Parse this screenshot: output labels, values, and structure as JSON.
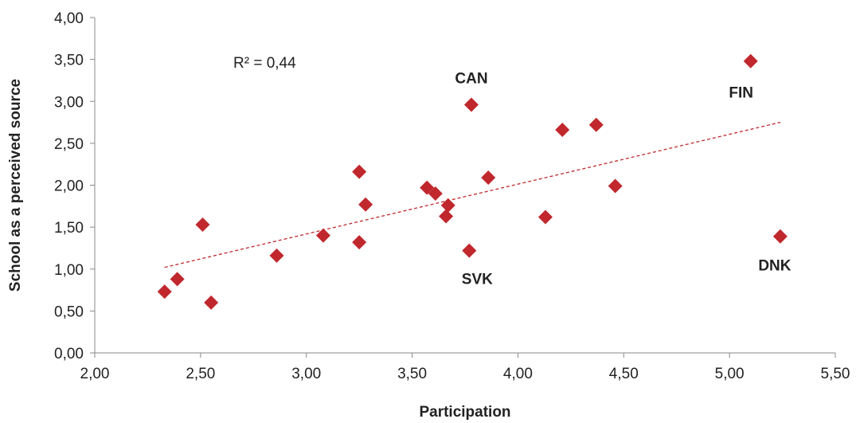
{
  "chart_data": {
    "type": "scatter",
    "xlabel": "Participation",
    "ylabel": "School as a perceived source",
    "xlim": [
      2.0,
      5.5
    ],
    "ylim": [
      0.0,
      4.0
    ],
    "xticks": [
      "2,00",
      "2,50",
      "3,00",
      "3,50",
      "4,00",
      "4,50",
      "5,00",
      "5,50"
    ],
    "yticks": [
      "0,00",
      "0,50",
      "1,00",
      "1,50",
      "2,00",
      "2,50",
      "3,00",
      "3,50",
      "4,00"
    ],
    "grid": false,
    "marker_color": "#c0282d",
    "trendline": {
      "style": "dotted",
      "color": "#c0282d",
      "x": [
        2.33,
        5.24
      ],
      "y": [
        1.02,
        2.75
      ]
    },
    "annotation": "R² = 0,44",
    "points": [
      {
        "x": 2.33,
        "y": 0.73,
        "label": ""
      },
      {
        "x": 2.39,
        "y": 0.88,
        "label": ""
      },
      {
        "x": 2.51,
        "y": 1.53,
        "label": ""
      },
      {
        "x": 2.55,
        "y": 0.6,
        "label": ""
      },
      {
        "x": 2.86,
        "y": 1.16,
        "label": ""
      },
      {
        "x": 3.08,
        "y": 1.4,
        "label": ""
      },
      {
        "x": 3.25,
        "y": 2.16,
        "label": ""
      },
      {
        "x": 3.25,
        "y": 1.32,
        "label": ""
      },
      {
        "x": 3.28,
        "y": 1.77,
        "label": ""
      },
      {
        "x": 3.57,
        "y": 1.97,
        "label": ""
      },
      {
        "x": 3.61,
        "y": 1.9,
        "label": ""
      },
      {
        "x": 3.66,
        "y": 1.63,
        "label": ""
      },
      {
        "x": 3.67,
        "y": 1.76,
        "label": ""
      },
      {
        "x": 3.77,
        "y": 1.22,
        "label": "SVK"
      },
      {
        "x": 3.78,
        "y": 2.96,
        "label": "CAN"
      },
      {
        "x": 3.86,
        "y": 2.09,
        "label": ""
      },
      {
        "x": 4.13,
        "y": 1.62,
        "label": ""
      },
      {
        "x": 4.21,
        "y": 2.66,
        "label": ""
      },
      {
        "x": 4.37,
        "y": 2.72,
        "label": ""
      },
      {
        "x": 4.46,
        "y": 1.99,
        "label": ""
      },
      {
        "x": 5.1,
        "y": 3.48,
        "label": "FIN"
      },
      {
        "x": 5.24,
        "y": 1.39,
        "label": "DNK"
      }
    ]
  }
}
